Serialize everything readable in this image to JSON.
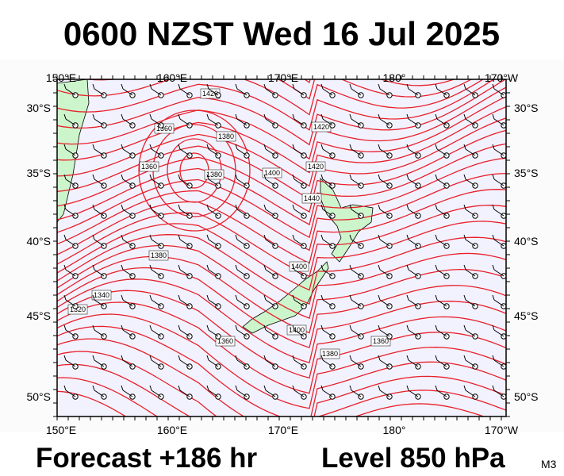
{
  "title": "0600 NZST Wed 16 Jul 2025",
  "axes": {
    "top_labels": [
      "150°E",
      "160°E",
      "170°E",
      "180°",
      "170°W"
    ],
    "bottom_labels": [
      "150°E",
      "160°E",
      "170°E",
      "180°",
      "170°W"
    ],
    "left_labels": [
      "30°S",
      "35°S",
      "40°S",
      "45°S",
      "50°S"
    ],
    "right_labels": [
      "30°S",
      "35°S",
      "40°S",
      "45°S",
      "50°S"
    ]
  },
  "contour_labels": [
    "1420",
    "1360",
    "1380",
    "1360",
    "1380",
    "1400",
    "1420",
    "1440",
    "1420",
    "1380",
    "1340",
    "1320",
    "1400",
    "1400",
    "1380",
    "1360",
    "1360"
  ],
  "footer": {
    "forecast": "Forecast +186 hr",
    "level": "Level 850 hPa",
    "code": "M3"
  }
}
